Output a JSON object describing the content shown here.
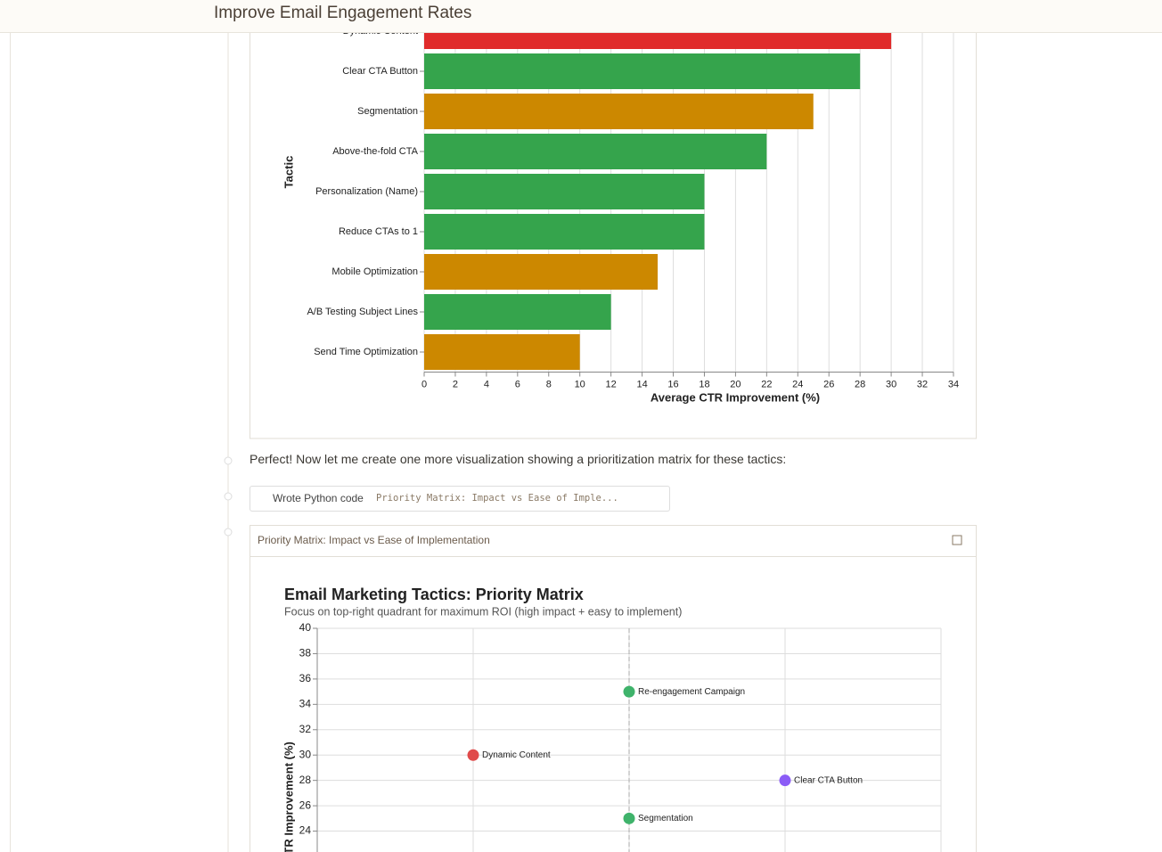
{
  "header": {
    "title": "Improve Email Engagement Rates"
  },
  "messages": [
    {
      "text": "Perfect! Now let me create one more visualization showing a prioritization matrix for these tactics:"
    }
  ],
  "tool_call": {
    "label": "Wrote Python code",
    "detail": "Priority Matrix: Impact vs Ease of Imple..."
  },
  "artifact": {
    "title": "Priority Matrix: Impact vs Ease of Implementation"
  },
  "chart_data": [
    {
      "type": "hbar",
      "x_label": "Average CTR Improvement (%)",
      "y_label": "Tactic",
      "categories": [
        "Dynamic Content",
        "Clear CTA Button",
        "Segmentation",
        "Above-the-fold CTA",
        "Personalization (Name)",
        "Reduce CTAs to 1",
        "Mobile Optimization",
        "A/B Testing Subject Lines",
        "Send Time Optimization"
      ],
      "values": [
        30,
        28,
        25,
        22,
        18,
        18,
        15,
        12,
        10
      ],
      "colors": [
        "#e02b2b",
        "#35a44c",
        "#cc8800",
        "#35a44c",
        "#35a44c",
        "#35a44c",
        "#cc8800",
        "#35a44c",
        "#cc8800"
      ],
      "xlim": [
        0,
        34
      ],
      "xticks": [
        0,
        2,
        4,
        6,
        8,
        10,
        12,
        14,
        16,
        18,
        20,
        22,
        24,
        26,
        28,
        30,
        32,
        34
      ],
      "grid": true
    },
    {
      "type": "scatter",
      "title": "Email Marketing Tactics: Priority Matrix",
      "subtitle": "Focus on top-right quadrant for maximum ROI (high impact + easy to implement)",
      "y_label": "CTR Improvement (%)",
      "labels": [
        "Re-engagement Campaign",
        "Dynamic Content",
        "Clear CTA Button",
        "Segmentation"
      ],
      "x": [
        2,
        1,
        3,
        2
      ],
      "values": [
        35,
        30,
        28,
        25
      ],
      "colors": [
        "#3fb36b",
        "#e04a4a",
        "#8b5cf6",
        "#3fb36b"
      ],
      "xlim": [
        0,
        4
      ],
      "xticks": [
        0,
        1,
        2,
        3,
        4
      ],
      "x_divider": 2,
      "ylim": [
        22,
        40
      ],
      "yticks": [
        24,
        26,
        28,
        30,
        32,
        34,
        36,
        38,
        40
      ],
      "grid": true
    }
  ]
}
